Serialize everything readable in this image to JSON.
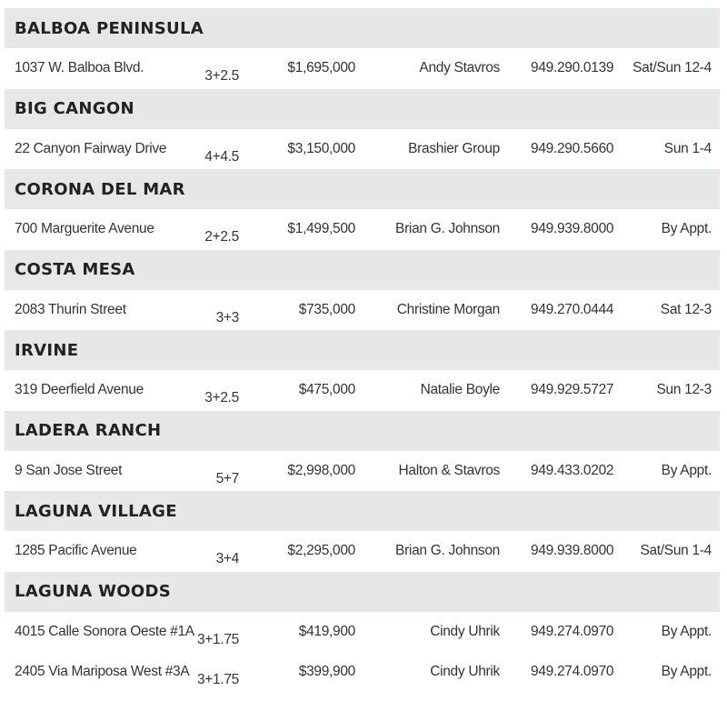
{
  "sections": [
    {
      "name": "BALBOA PENINSULA",
      "listings": [
        {
          "address": "1037 W. Balboa Blvd.",
          "beds_baths": "3+2.5",
          "price": "$1,695,000",
          "agent": "Andy Stavros",
          "phone": "949.290.0139",
          "open_house": "Sat/Sun 12-4"
        }
      ]
    },
    {
      "name": "BIG CANGON",
      "listings": [
        {
          "address": "22 Canyon Fairway Drive",
          "beds_baths": "4+4.5",
          "price": "$3,150,000",
          "agent": "Brashier Group",
          "phone": "949.290.5660",
          "open_house": "Sun 1-4"
        }
      ]
    },
    {
      "name": "CORONA DEL MAR",
      "listings": [
        {
          "address": "700 Marguerite Avenue",
          "beds_baths": "2+2.5",
          "price": "$1,499,500",
          "agent": "Brian G. Johnson",
          "phone": "949.939.8000",
          "open_house": "By Appt."
        }
      ]
    },
    {
      "name": "COSTA MESA",
      "listings": [
        {
          "address": "2083 Thurin Street",
          "beds_baths": "3+3",
          "price": "$735,000",
          "agent": "Christine Morgan",
          "phone": "949.270.0444",
          "open_house": "Sat 12-3"
        }
      ]
    },
    {
      "name": "IRVINE",
      "listings": [
        {
          "address": "319 Deerfield Avenue",
          "beds_baths": "3+2.5",
          "price": "$475,000",
          "agent": "Natalie Boyle",
          "phone": "949.929.5727",
          "open_house": "Sun 12-3"
        }
      ]
    },
    {
      "name": "LADERA RANCH",
      "listings": [
        {
          "address": "9 San Jose Street",
          "beds_baths": "5+7",
          "price": "$2,998,000",
          "agent": "Halton & Stavros",
          "phone": "949.433.0202",
          "open_house": "By Appt."
        }
      ]
    },
    {
      "name": "LAGUNA VILLAGE",
      "listings": [
        {
          "address": "1285 Pacific Avenue",
          "beds_baths": "3+4",
          "price": "$2,295,000",
          "agent": "Brian G. Johnson",
          "phone": "949.939.8000",
          "open_house": "Sat/Sun 1-4"
        }
      ]
    },
    {
      "name": "LAGUNA WOODS",
      "listings": [
        {
          "address": "4015 Calle Sonora Oeste #1A",
          "beds_baths": "3+1.75",
          "price": "$419,900",
          "agent": "Cindy Uhrik",
          "phone": "949.274.0970",
          "open_house": "By Appt."
        },
        {
          "address": "2405 Via Mariposa West #3A",
          "beds_baths": "3+1.75",
          "price": "$399,900",
          "agent": "Cindy Uhrik",
          "phone": "949.274.0970",
          "open_house": "By Appt."
        }
      ]
    }
  ],
  "colors": {
    "section_header_bg": "#e6e8e8",
    "text": "#333333"
  }
}
